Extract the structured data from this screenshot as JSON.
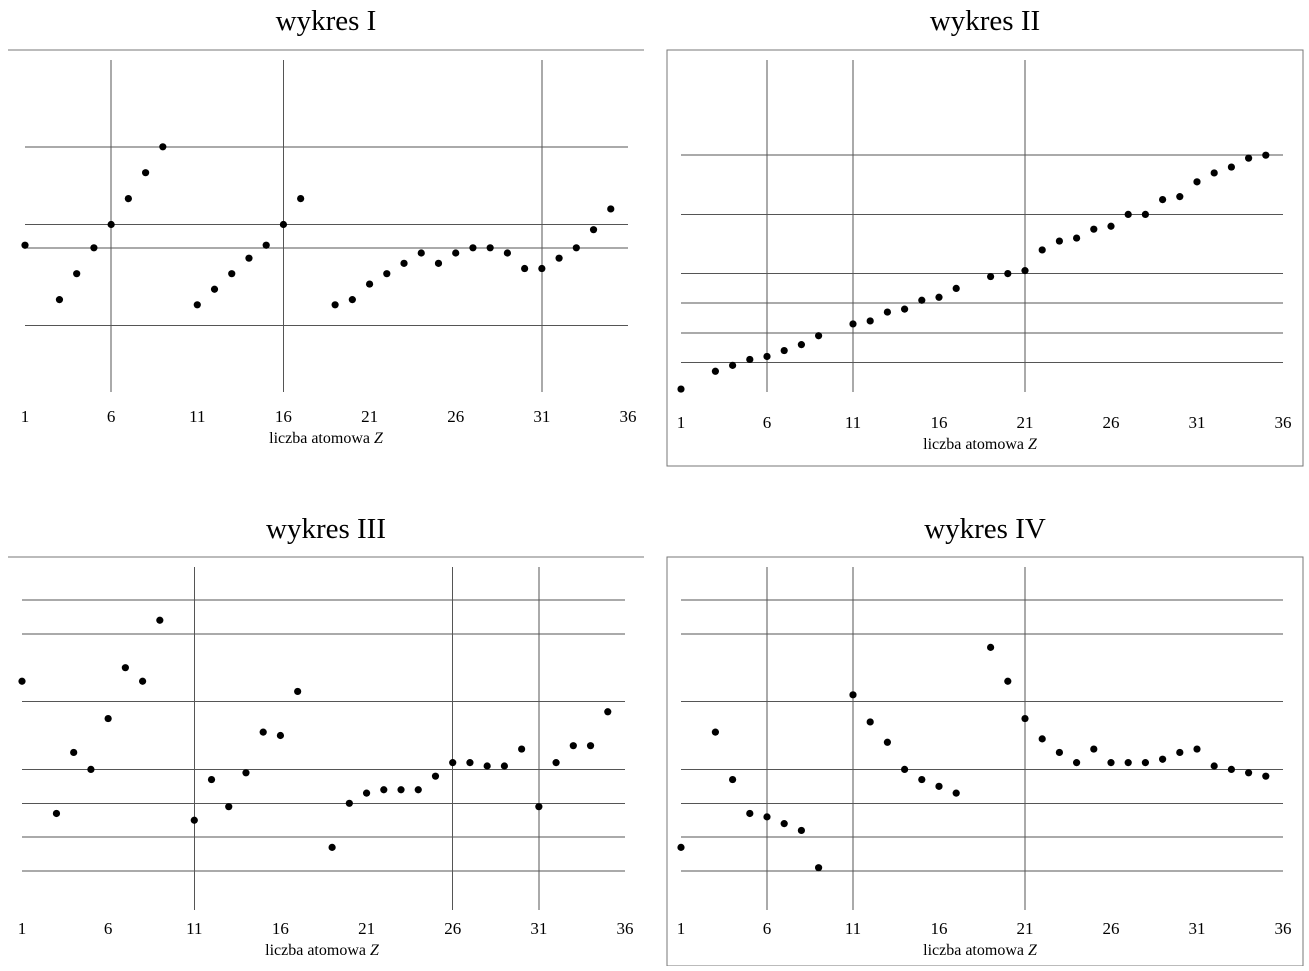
{
  "chart_data": [
    {
      "type": "scatter",
      "title": "wykres I",
      "xlabel": "liczba atomowa Z",
      "xlim": [
        1,
        36
      ],
      "ylim": [
        0,
        100
      ],
      "x_ticks": [
        1,
        6,
        11,
        16,
        21,
        26,
        31,
        36
      ],
      "y_gridlines": [
        11,
        41,
        50,
        80
      ],
      "x_gridlines": [
        6,
        16,
        31
      ],
      "grid": true,
      "points": [
        [
          1,
          42
        ],
        [
          3,
          21
        ],
        [
          4,
          31
        ],
        [
          5,
          41
        ],
        [
          6,
          50
        ],
        [
          7,
          60
        ],
        [
          8,
          70
        ],
        [
          9,
          80
        ],
        [
          11,
          19
        ],
        [
          12,
          25
        ],
        [
          13,
          31
        ],
        [
          14,
          37
        ],
        [
          15,
          42
        ],
        [
          16,
          50
        ],
        [
          17,
          60
        ],
        [
          19,
          19
        ],
        [
          20,
          21
        ],
        [
          21,
          27
        ],
        [
          22,
          31
        ],
        [
          23,
          35
        ],
        [
          24,
          39
        ],
        [
          25,
          35
        ],
        [
          26,
          39
        ],
        [
          27,
          41
        ],
        [
          28,
          41
        ],
        [
          29,
          39
        ],
        [
          30,
          33
        ],
        [
          31,
          33
        ],
        [
          32,
          37
        ],
        [
          33,
          41
        ],
        [
          34,
          48
        ],
        [
          35,
          56
        ]
      ]
    },
    {
      "type": "scatter",
      "title": "wykres II",
      "xlabel": "liczba atomowa Z",
      "xlim": [
        1,
        36
      ],
      "ylim": [
        0,
        100
      ],
      "x_ticks": [
        1,
        6,
        11,
        16,
        21,
        26,
        31,
        36
      ],
      "y_gridlines": [
        10,
        20,
        30,
        40,
        60,
        80
      ],
      "x_gridlines": [
        6,
        11,
        21
      ],
      "grid": true,
      "points": [
        [
          1,
          1
        ],
        [
          3,
          7
        ],
        [
          4,
          9
        ],
        [
          5,
          11
        ],
        [
          6,
          12
        ],
        [
          7,
          14
        ],
        [
          8,
          16
        ],
        [
          9,
          19
        ],
        [
          11,
          23
        ],
        [
          12,
          24
        ],
        [
          13,
          27
        ],
        [
          14,
          28
        ],
        [
          15,
          31
        ],
        [
          16,
          32
        ],
        [
          17,
          35
        ],
        [
          19,
          39
        ],
        [
          20,
          40
        ],
        [
          21,
          41
        ],
        [
          22,
          48
        ],
        [
          23,
          51
        ],
        [
          24,
          52
        ],
        [
          25,
          55
        ],
        [
          26,
          56
        ],
        [
          27,
          60
        ],
        [
          28,
          60
        ],
        [
          29,
          65
        ],
        [
          30,
          66
        ],
        [
          31,
          71
        ],
        [
          32,
          74
        ],
        [
          33,
          76
        ],
        [
          34,
          79
        ],
        [
          35,
          80
        ]
      ]
    },
    {
      "type": "scatter",
      "title": "wykres III",
      "xlabel": "liczba atomowa Z",
      "xlim": [
        1,
        36
      ],
      "ylim": [
        0,
        100
      ],
      "x_ticks": [
        1,
        6,
        11,
        16,
        21,
        26,
        31,
        36
      ],
      "y_gridlines": [
        10,
        20,
        30,
        40,
        60,
        80,
        90
      ],
      "x_gridlines": [
        11,
        26,
        31
      ],
      "grid": true,
      "points": [
        [
          1,
          66
        ],
        [
          3,
          27
        ],
        [
          4,
          45
        ],
        [
          5,
          40
        ],
        [
          6,
          55
        ],
        [
          7,
          70
        ],
        [
          8,
          66
        ],
        [
          9,
          84
        ],
        [
          11,
          25
        ],
        [
          12,
          37
        ],
        [
          13,
          29
        ],
        [
          14,
          39
        ],
        [
          15,
          51
        ],
        [
          16,
          50
        ],
        [
          17,
          63
        ],
        [
          19,
          17
        ],
        [
          20,
          30
        ],
        [
          21,
          33
        ],
        [
          22,
          34
        ],
        [
          23,
          34
        ],
        [
          24,
          34
        ],
        [
          25,
          38
        ],
        [
          26,
          42
        ],
        [
          27,
          42
        ],
        [
          28,
          41
        ],
        [
          29,
          41
        ],
        [
          30,
          46
        ],
        [
          31,
          29
        ],
        [
          32,
          42
        ],
        [
          33,
          47
        ],
        [
          34,
          47
        ],
        [
          35,
          57
        ]
      ]
    },
    {
      "type": "scatter",
      "title": "wykres IV",
      "xlabel": "liczba atomowa Z",
      "xlim": [
        1,
        36
      ],
      "ylim": [
        0,
        100
      ],
      "x_ticks": [
        1,
        6,
        11,
        16,
        21,
        26,
        31,
        36
      ],
      "y_gridlines": [
        10,
        20,
        30,
        40,
        60,
        80,
        90
      ],
      "x_gridlines": [
        6,
        11,
        21
      ],
      "grid": true,
      "points": [
        [
          1,
          17
        ],
        [
          3,
          51
        ],
        [
          4,
          37
        ],
        [
          5,
          27
        ],
        [
          6,
          26
        ],
        [
          7,
          24
        ],
        [
          8,
          22
        ],
        [
          9,
          11
        ],
        [
          11,
          62
        ],
        [
          12,
          54
        ],
        [
          13,
          48
        ],
        [
          14,
          40
        ],
        [
          15,
          37
        ],
        [
          16,
          35
        ],
        [
          17,
          33
        ],
        [
          19,
          76
        ],
        [
          20,
          66
        ],
        [
          21,
          55
        ],
        [
          22,
          49
        ],
        [
          23,
          45
        ],
        [
          24,
          42
        ],
        [
          25,
          46
        ],
        [
          26,
          42
        ],
        [
          27,
          42
        ],
        [
          28,
          42
        ],
        [
          29,
          43
        ],
        [
          30,
          45
        ],
        [
          31,
          46
        ],
        [
          32,
          41
        ],
        [
          33,
          40
        ],
        [
          34,
          39
        ],
        [
          35,
          38
        ]
      ]
    }
  ]
}
